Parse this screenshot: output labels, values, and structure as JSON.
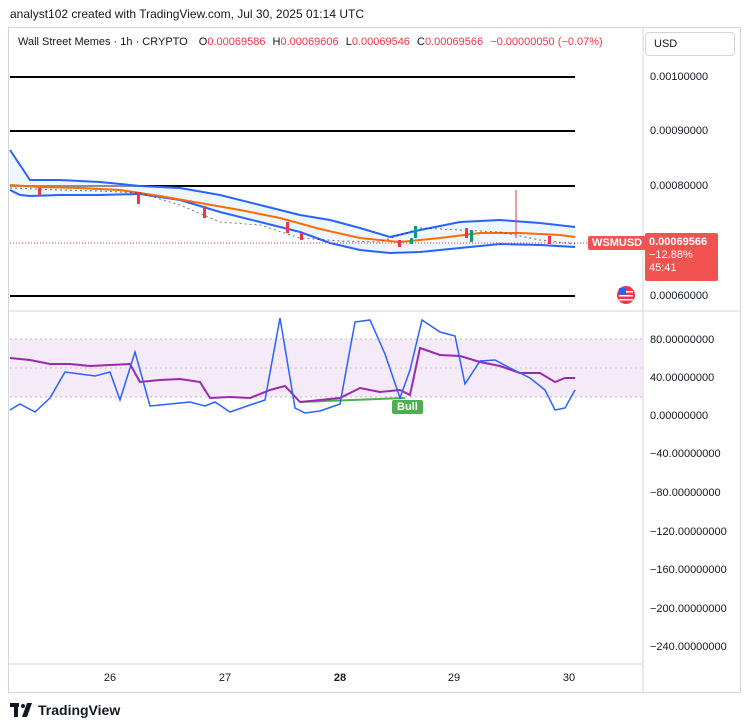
{
  "header": {
    "text": "analyst102 created with TradingView.com, Jul 30, 2025 01:14 UTC"
  },
  "legend": {
    "symbol": "Wall Street Memes · 1h · CRYPTO",
    "open_k": "O",
    "open": "0.00069586",
    "high_k": "H",
    "high": "0.00069606",
    "low_k": "L",
    "low": "0.00069546",
    "close_k": "C",
    "close": "0.00069566",
    "change": "−0.00000050 (−0.07%)"
  },
  "currency": "USD",
  "price_axis": [
    "0.00100000",
    "0.00090000",
    "0.00080000",
    "0.00060000"
  ],
  "price_tag": {
    "symbol": "WSMUSD",
    "price": "0.00069566",
    "change": "−12.88%",
    "countdown": "45:41"
  },
  "stoch_axis": [
    "80.00000000",
    "40.00000000",
    "0.00000000",
    "−40.00000000",
    "−80.00000000",
    "−120.00000000",
    "−160.00000000",
    "−200.00000000",
    "−240.00000000"
  ],
  "bull_label": "Bull",
  "time_axis": [
    {
      "label": "26",
      "bold": false
    },
    {
      "label": "27",
      "bold": false
    },
    {
      "label": "28",
      "bold": true
    },
    {
      "label": "29",
      "bold": false
    },
    {
      "label": "30",
      "bold": false
    }
  ],
  "footer": {
    "brand": "TradingView"
  },
  "colors": {
    "bb_band": "#2962ff",
    "bb_basis": "#ff6d00",
    "down": "#f23645",
    "up": "#089981",
    "stoch_k": "#2962ff",
    "stoch_d": "#9c27b0",
    "stoch_fill": "#f3e5f5"
  }
}
